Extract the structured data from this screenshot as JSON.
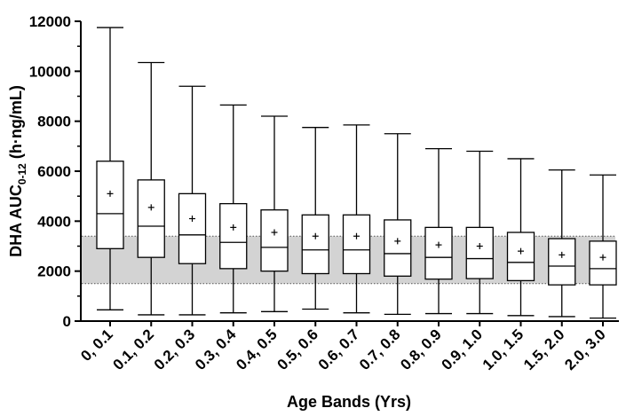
{
  "chart_data": {
    "type": "boxplot",
    "xlabel": "Age Bands (Yrs)",
    "ylabel": {
      "main": "DHA AUC",
      "subscript": "0-12",
      "unit": " (h·ng/mL)"
    },
    "ylim": [
      0,
      12000
    ],
    "yticks": [
      "0",
      "2000",
      "4000",
      "6000",
      "8000",
      "10000",
      "12000"
    ],
    "ytick_values": [
      0,
      2000,
      4000,
      6000,
      8000,
      10000,
      12000
    ],
    "reference_band": {
      "low": 1500,
      "high": 3400,
      "color": "#d3d3d3"
    },
    "categories": [
      "0, 0.1",
      "0.1, 0.2",
      "0.2, 0.3",
      "0.3, 0.4",
      "0.4, 0.5",
      "0.5, 0.6",
      "0.6, 0.7",
      "0.7, 0.8",
      "0.8, 0.9",
      "0.9, 1.0",
      "1.0, 1.5",
      "1.5, 2.0",
      "2.0, 3.0"
    ],
    "series": [
      {
        "min": 450,
        "q1": 2900,
        "median": 4300,
        "q3": 6400,
        "max": 11750,
        "mean": 5100
      },
      {
        "min": 250,
        "q1": 2550,
        "median": 3800,
        "q3": 5650,
        "max": 10350,
        "mean": 4550
      },
      {
        "min": 250,
        "q1": 2300,
        "median": 3450,
        "q3": 5100,
        "max": 9400,
        "mean": 4100
      },
      {
        "min": 330,
        "q1": 2100,
        "median": 3150,
        "q3": 4700,
        "max": 8650,
        "mean": 3750
      },
      {
        "min": 380,
        "q1": 2000,
        "median": 2950,
        "q3": 4450,
        "max": 8200,
        "mean": 3550
      },
      {
        "min": 480,
        "q1": 1900,
        "median": 2850,
        "q3": 4250,
        "max": 7750,
        "mean": 3400
      },
      {
        "min": 330,
        "q1": 1900,
        "median": 2850,
        "q3": 4250,
        "max": 7850,
        "mean": 3400
      },
      {
        "min": 270,
        "q1": 1800,
        "median": 2700,
        "q3": 4050,
        "max": 7500,
        "mean": 3200
      },
      {
        "min": 300,
        "q1": 1680,
        "median": 2550,
        "q3": 3750,
        "max": 6900,
        "mean": 3050
      },
      {
        "min": 300,
        "q1": 1700,
        "median": 2500,
        "q3": 3750,
        "max": 6800,
        "mean": 3000
      },
      {
        "min": 220,
        "q1": 1620,
        "median": 2350,
        "q3": 3550,
        "max": 6500,
        "mean": 2800
      },
      {
        "min": 180,
        "q1": 1450,
        "median": 2200,
        "q3": 3300,
        "max": 6050,
        "mean": 2650
      },
      {
        "min": 120,
        "q1": 1450,
        "median": 2100,
        "q3": 3200,
        "max": 5850,
        "mean": 2550
      }
    ],
    "mean_marker": "+",
    "grid": false,
    "legend": "none"
  }
}
